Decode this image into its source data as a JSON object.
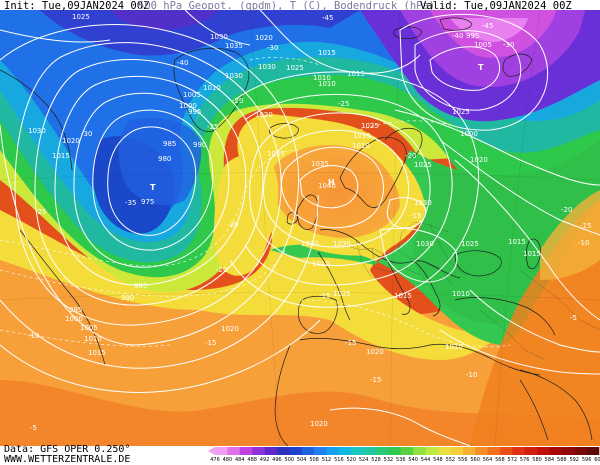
{
  "header": {
    "init": "Init: Tue,09JAN2024 00Z",
    "title": "500 hPa Geopot. (gpdm), T (C), Bodendruck (hPa)",
    "valid": "Valid: Tue,09JAN2024 00Z"
  },
  "footer": {
    "data_source": "Data: GFS OPER 0.250°",
    "website": "WWW.WETTERZENTRALE.DE"
  },
  "colorbar": {
    "labels": [
      "476",
      "480",
      "484",
      "488",
      "492",
      "496",
      "500",
      "504",
      "508",
      "512",
      "516",
      "520",
      "524",
      "528",
      "532",
      "536",
      "540",
      "544",
      "548",
      "552",
      "556",
      "560",
      "564",
      "568",
      "572",
      "576",
      "580",
      "584",
      "588",
      "592",
      "596",
      "600"
    ]
  },
  "isobar_labels": [
    "1025",
    "1030",
    "1035",
    "1020",
    "1015",
    "1030",
    "1010",
    "1030",
    "1025",
    "1005",
    "1010",
    "1030",
    "1000",
    "995",
    "1020",
    "1025",
    "980",
    "990",
    "985",
    "1015",
    "1020",
    "1010",
    "975",
    "1015",
    "1025",
    "1035",
    "1040",
    "1030",
    "1030",
    "1025",
    "1015",
    "1010",
    "1030",
    "1025",
    "1015",
    "1020",
    "1015",
    "1010",
    "1000",
    "1005",
    "995",
    "985",
    "990",
    "1015",
    "1010",
    "1020",
    "1025",
    "1020",
    "1030",
    "1025",
    "1010",
    "1015",
    "1010",
    "995",
    "1005",
    "1000",
    "1020"
  ],
  "temperature_labels": [
    "-45",
    "-40",
    "-30",
    "-35",
    "-25",
    "-20",
    "-20",
    "-15",
    "-15",
    "-10",
    "-5",
    "-15",
    "-10",
    "-25",
    "-30",
    "-20",
    "-25",
    "-30",
    "-40",
    "-45",
    "-15",
    "-20",
    "-15",
    "-20",
    "-15",
    "-10",
    "-5"
  ],
  "colors": {
    "background_map": "#e8e8e8",
    "isobar": "#ffffff",
    "coastline": "#202020",
    "header_title": "#7a7aa0"
  }
}
